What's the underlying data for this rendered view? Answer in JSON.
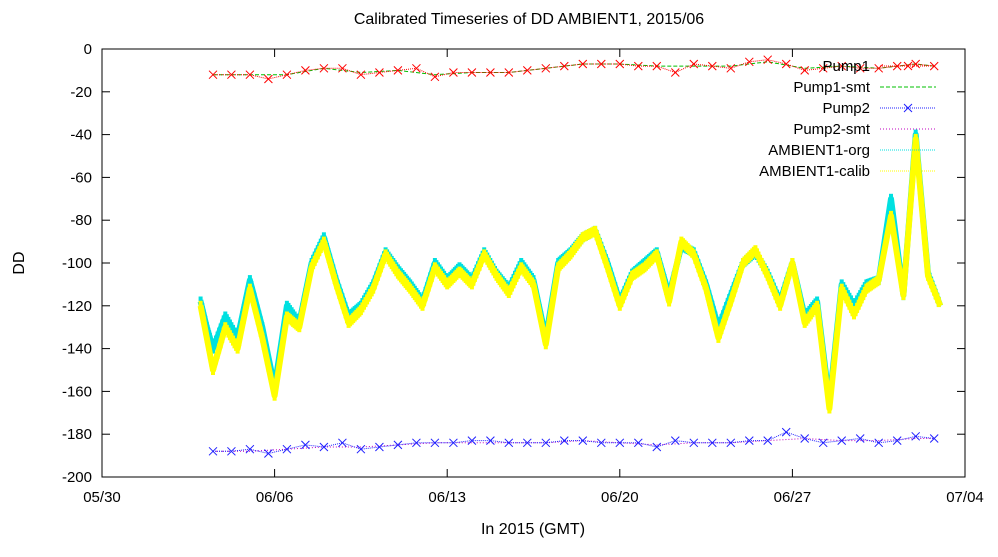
{
  "chart_data": {
    "type": "line",
    "title": "Calibrated Timeseries of DD AMBIENT1, 2015/06",
    "xlabel": "In 2015 (GMT)",
    "ylabel": "DD",
    "x_ticks": [
      "05/30",
      "06/06",
      "06/13",
      "06/20",
      "06/27",
      "07/04"
    ],
    "y_ticks": [
      0,
      -20,
      -40,
      -60,
      -80,
      -100,
      -120,
      -140,
      -160,
      -180,
      -200
    ],
    "xlim": [
      "2015-05-30",
      "2015-07-04"
    ],
    "ylim": [
      -200,
      0
    ],
    "grid": false,
    "legend_position": "top-right",
    "series": [
      {
        "name": "Pump1",
        "color": "#ff0000",
        "marker": "x-cross",
        "x": [
          "06/03 12:00",
          "06/04 06:00",
          "06/05 00:00",
          "06/05 18:00",
          "06/06 12:00",
          "06/07 06:00",
          "06/08 00:00",
          "06/08 18:00",
          "06/09 12:00",
          "06/10 06:00",
          "06/11 00:00",
          "06/11 18:00",
          "06/12 12:00",
          "06/13 06:00",
          "06/14 00:00",
          "06/14 18:00",
          "06/15 12:00",
          "06/16 06:00",
          "06/17 00:00",
          "06/17 18:00",
          "06/18 12:00",
          "06/19 06:00",
          "06/20 00:00",
          "06/20 18:00",
          "06/21 12:00",
          "06/22 06:00",
          "06/23 00:00",
          "06/23 18:00",
          "06/24 12:00",
          "06/25 06:00",
          "06/26 00:00",
          "06/26 18:00",
          "06/27 12:00",
          "06/28 06:00",
          "06/29 00:00",
          "06/29 18:00",
          "06/30 12:00",
          "07/01 06:00",
          "07/02 00:00",
          "07/02 18:00"
        ],
        "y": [
          -12,
          -12,
          -12,
          -14,
          -12,
          -10,
          -9,
          -9,
          -12,
          -11,
          -10,
          -9,
          -13,
          -11,
          -11,
          -11,
          -11,
          -10,
          -9,
          -8,
          -7,
          -7,
          -7,
          -8,
          -8,
          -11,
          -7,
          -8,
          -9,
          -6,
          -5,
          -7,
          -10,
          -9,
          -8,
          -9,
          -9,
          -8,
          -7,
          -8
        ]
      },
      {
        "name": "Pump1-smt",
        "color": "#00c000",
        "dash": "dashed",
        "x": [
          "06/03 12:00",
          "06/05 00:00",
          "06/06 12:00",
          "06/08 00:00",
          "06/09 12:00",
          "06/11 00:00",
          "06/12 12:00",
          "06/14 00:00",
          "06/15 12:00",
          "06/17 00:00",
          "06/18 12:00",
          "06/20 00:00",
          "06/21 12:00",
          "06/23 00:00",
          "06/24 12:00",
          "06/26 00:00",
          "06/27 12:00",
          "06/29 00:00",
          "06/30 12:00",
          "07/02 00:00",
          "07/02 18:00"
        ],
        "y": [
          -12,
          -12,
          -12,
          -9,
          -11,
          -10,
          -12,
          -11,
          -11,
          -9,
          -7,
          -7,
          -8,
          -8,
          -8,
          -6,
          -9,
          -8,
          -9,
          -7,
          -8
        ]
      },
      {
        "name": "Pump2",
        "color": "#2020ff",
        "marker": "x-cross",
        "x": [
          "06/03 12:00",
          "06/04 06:00",
          "06/05 00:00",
          "06/05 18:00",
          "06/06 12:00",
          "06/07 06:00",
          "06/08 00:00",
          "06/08 18:00",
          "06/09 12:00",
          "06/10 06:00",
          "06/11 00:00",
          "06/11 18:00",
          "06/12 12:00",
          "06/13 06:00",
          "06/14 00:00",
          "06/14 18:00",
          "06/15 12:00",
          "06/16 06:00",
          "06/17 00:00",
          "06/17 18:00",
          "06/18 12:00",
          "06/19 06:00",
          "06/20 00:00",
          "06/20 18:00",
          "06/21 12:00",
          "06/22 06:00",
          "06/23 00:00",
          "06/23 18:00",
          "06/24 12:00",
          "06/25 06:00",
          "06/26 00:00",
          "06/26 18:00",
          "06/27 12:00",
          "06/28 06:00",
          "06/29 00:00",
          "06/29 18:00",
          "06/30 12:00",
          "07/01 06:00",
          "07/02 00:00",
          "07/02 18:00"
        ],
        "y": [
          -188,
          -188,
          -187,
          -189,
          -187,
          -185,
          -186,
          -184,
          -187,
          -186,
          -185,
          -184,
          -184,
          -184,
          -183,
          -183,
          -184,
          -184,
          -184,
          -183,
          -183,
          -184,
          -184,
          -184,
          -186,
          -183,
          -184,
          -184,
          -184,
          -183,
          -183,
          -179,
          -182,
          -184,
          -183,
          -182,
          -184,
          -183,
          -181,
          -182
        ]
      },
      {
        "name": "Pump2-smt",
        "color": "#c000c0",
        "dash": "dotted",
        "x": [
          "06/03 12:00",
          "06/05 00:00",
          "06/06 12:00",
          "06/08 00:00",
          "06/09 12:00",
          "06/11 00:00",
          "06/12 12:00",
          "06/14 00:00",
          "06/15 12:00",
          "06/17 00:00",
          "06/18 12:00",
          "06/20 00:00",
          "06/21 12:00",
          "06/23 00:00",
          "06/24 12:00",
          "06/26 00:00",
          "06/27 12:00",
          "06/29 00:00",
          "06/30 12:00",
          "07/02 00:00",
          "07/02 18:00"
        ],
        "y": [
          -188,
          -188,
          -187,
          -186,
          -186,
          -185,
          -184,
          -184,
          -184,
          -184,
          -183,
          -184,
          -185,
          -184,
          -184,
          -183,
          -182,
          -183,
          -183,
          -182,
          -182
        ]
      },
      {
        "name": "AMBIENT1-org",
        "color": "#00e0e0",
        "marker": "dot",
        "x": [
          "06/03 00:00",
          "06/03 06:00",
          "06/03 12:00",
          "06/04 00:00",
          "06/04 12:00",
          "06/05 00:00",
          "06/05 12:00",
          "06/06 00:00",
          "06/06 12:00",
          "06/07 00:00",
          "06/07 12:00",
          "06/08 00:00",
          "06/08 12:00",
          "06/09 00:00",
          "06/09 12:00",
          "06/10 00:00",
          "06/10 12:00",
          "06/11 00:00",
          "06/11 12:00",
          "06/12 00:00",
          "06/12 12:00",
          "06/13 00:00",
          "06/13 12:00",
          "06/14 00:00",
          "06/14 12:00",
          "06/15 00:00",
          "06/15 12:00",
          "06/16 00:00",
          "06/16 12:00",
          "06/17 00:00",
          "06/17 12:00",
          "06/18 00:00",
          "06/18 12:00",
          "06/19 00:00",
          "06/19 12:00",
          "06/20 00:00",
          "06/20 12:00",
          "06/21 00:00",
          "06/21 12:00",
          "06/22 00:00",
          "06/22 12:00",
          "06/23 00:00",
          "06/23 12:00",
          "06/24 00:00",
          "06/24 12:00",
          "06/25 00:00",
          "06/25 12:00",
          "06/26 00:00",
          "06/26 12:00",
          "06/27 00:00",
          "06/27 12:00",
          "06/28 00:00",
          "06/28 12:00",
          "06/29 00:00",
          "06/29 12:00",
          "06/30 00:00",
          "06/30 12:00",
          "07/01 00:00",
          "07/01 12:00",
          "07/02 00:00",
          "07/02 12:00",
          "07/03 00:00"
        ],
        "y": [
          -118,
          -130,
          -140,
          -125,
          -135,
          -108,
          -130,
          -158,
          -120,
          -128,
          -100,
          -88,
          -108,
          -125,
          -120,
          -110,
          -95,
          -103,
          -110,
          -118,
          -100,
          -108,
          -102,
          -108,
          -95,
          -105,
          -112,
          -100,
          -108,
          -135,
          -100,
          -95,
          -88,
          -85,
          -100,
          -118,
          -105,
          -100,
          -95,
          -115,
          -92,
          -95,
          -110,
          -130,
          -115,
          -100,
          -95,
          -105,
          -118,
          -100,
          -125,
          -118,
          -165,
          -110,
          -120,
          -110,
          -108,
          -70,
          -115,
          -40,
          -105,
          -120
        ]
      },
      {
        "name": "AMBIENT1-calib",
        "color": "#ffff00",
        "marker": "dot",
        "x": [
          "06/03 00:00",
          "06/03 06:00",
          "06/03 12:00",
          "06/04 00:00",
          "06/04 12:00",
          "06/05 00:00",
          "06/05 12:00",
          "06/06 00:00",
          "06/06 12:00",
          "06/07 00:00",
          "06/07 12:00",
          "06/08 00:00",
          "06/08 12:00",
          "06/09 00:00",
          "06/09 12:00",
          "06/10 00:00",
          "06/10 12:00",
          "06/11 00:00",
          "06/11 12:00",
          "06/12 00:00",
          "06/12 12:00",
          "06/13 00:00",
          "06/13 12:00",
          "06/14 00:00",
          "06/14 12:00",
          "06/15 00:00",
          "06/15 12:00",
          "06/16 00:00",
          "06/16 12:00",
          "06/17 00:00",
          "06/17 12:00",
          "06/18 00:00",
          "06/18 12:00",
          "06/19 00:00",
          "06/19 12:00",
          "06/20 00:00",
          "06/20 12:00",
          "06/21 00:00",
          "06/21 12:00",
          "06/22 00:00",
          "06/22 12:00",
          "06/23 00:00",
          "06/23 12:00",
          "06/24 00:00",
          "06/24 12:00",
          "06/25 00:00",
          "06/25 12:00",
          "06/26 00:00",
          "06/26 12:00",
          "06/27 00:00",
          "06/27 12:00",
          "06/28 00:00",
          "06/28 12:00",
          "06/29 00:00",
          "06/29 12:00",
          "06/30 00:00",
          "06/30 12:00",
          "07/01 00:00",
          "07/01 12:00",
          "07/02 00:00",
          "07/02 12:00",
          "07/03 00:00"
        ],
        "y": [
          -120,
          -135,
          -150,
          -130,
          -140,
          -112,
          -135,
          -162,
          -125,
          -130,
          -102,
          -90,
          -110,
          -128,
          -122,
          -112,
          -96,
          -105,
          -112,
          -120,
          -102,
          -110,
          -104,
          -110,
          -96,
          -106,
          -114,
          -102,
          -110,
          -138,
          -102,
          -96,
          -88,
          -85,
          -102,
          -120,
          -106,
          -102,
          -96,
          -118,
          -90,
          -96,
          -112,
          -135,
          -118,
          -100,
          -94,
          -106,
          -120,
          -100,
          -128,
          -120,
          -168,
          -112,
          -124,
          -112,
          -108,
          -78,
          -115,
          -42,
          -106,
          -120
        ]
      }
    ]
  }
}
